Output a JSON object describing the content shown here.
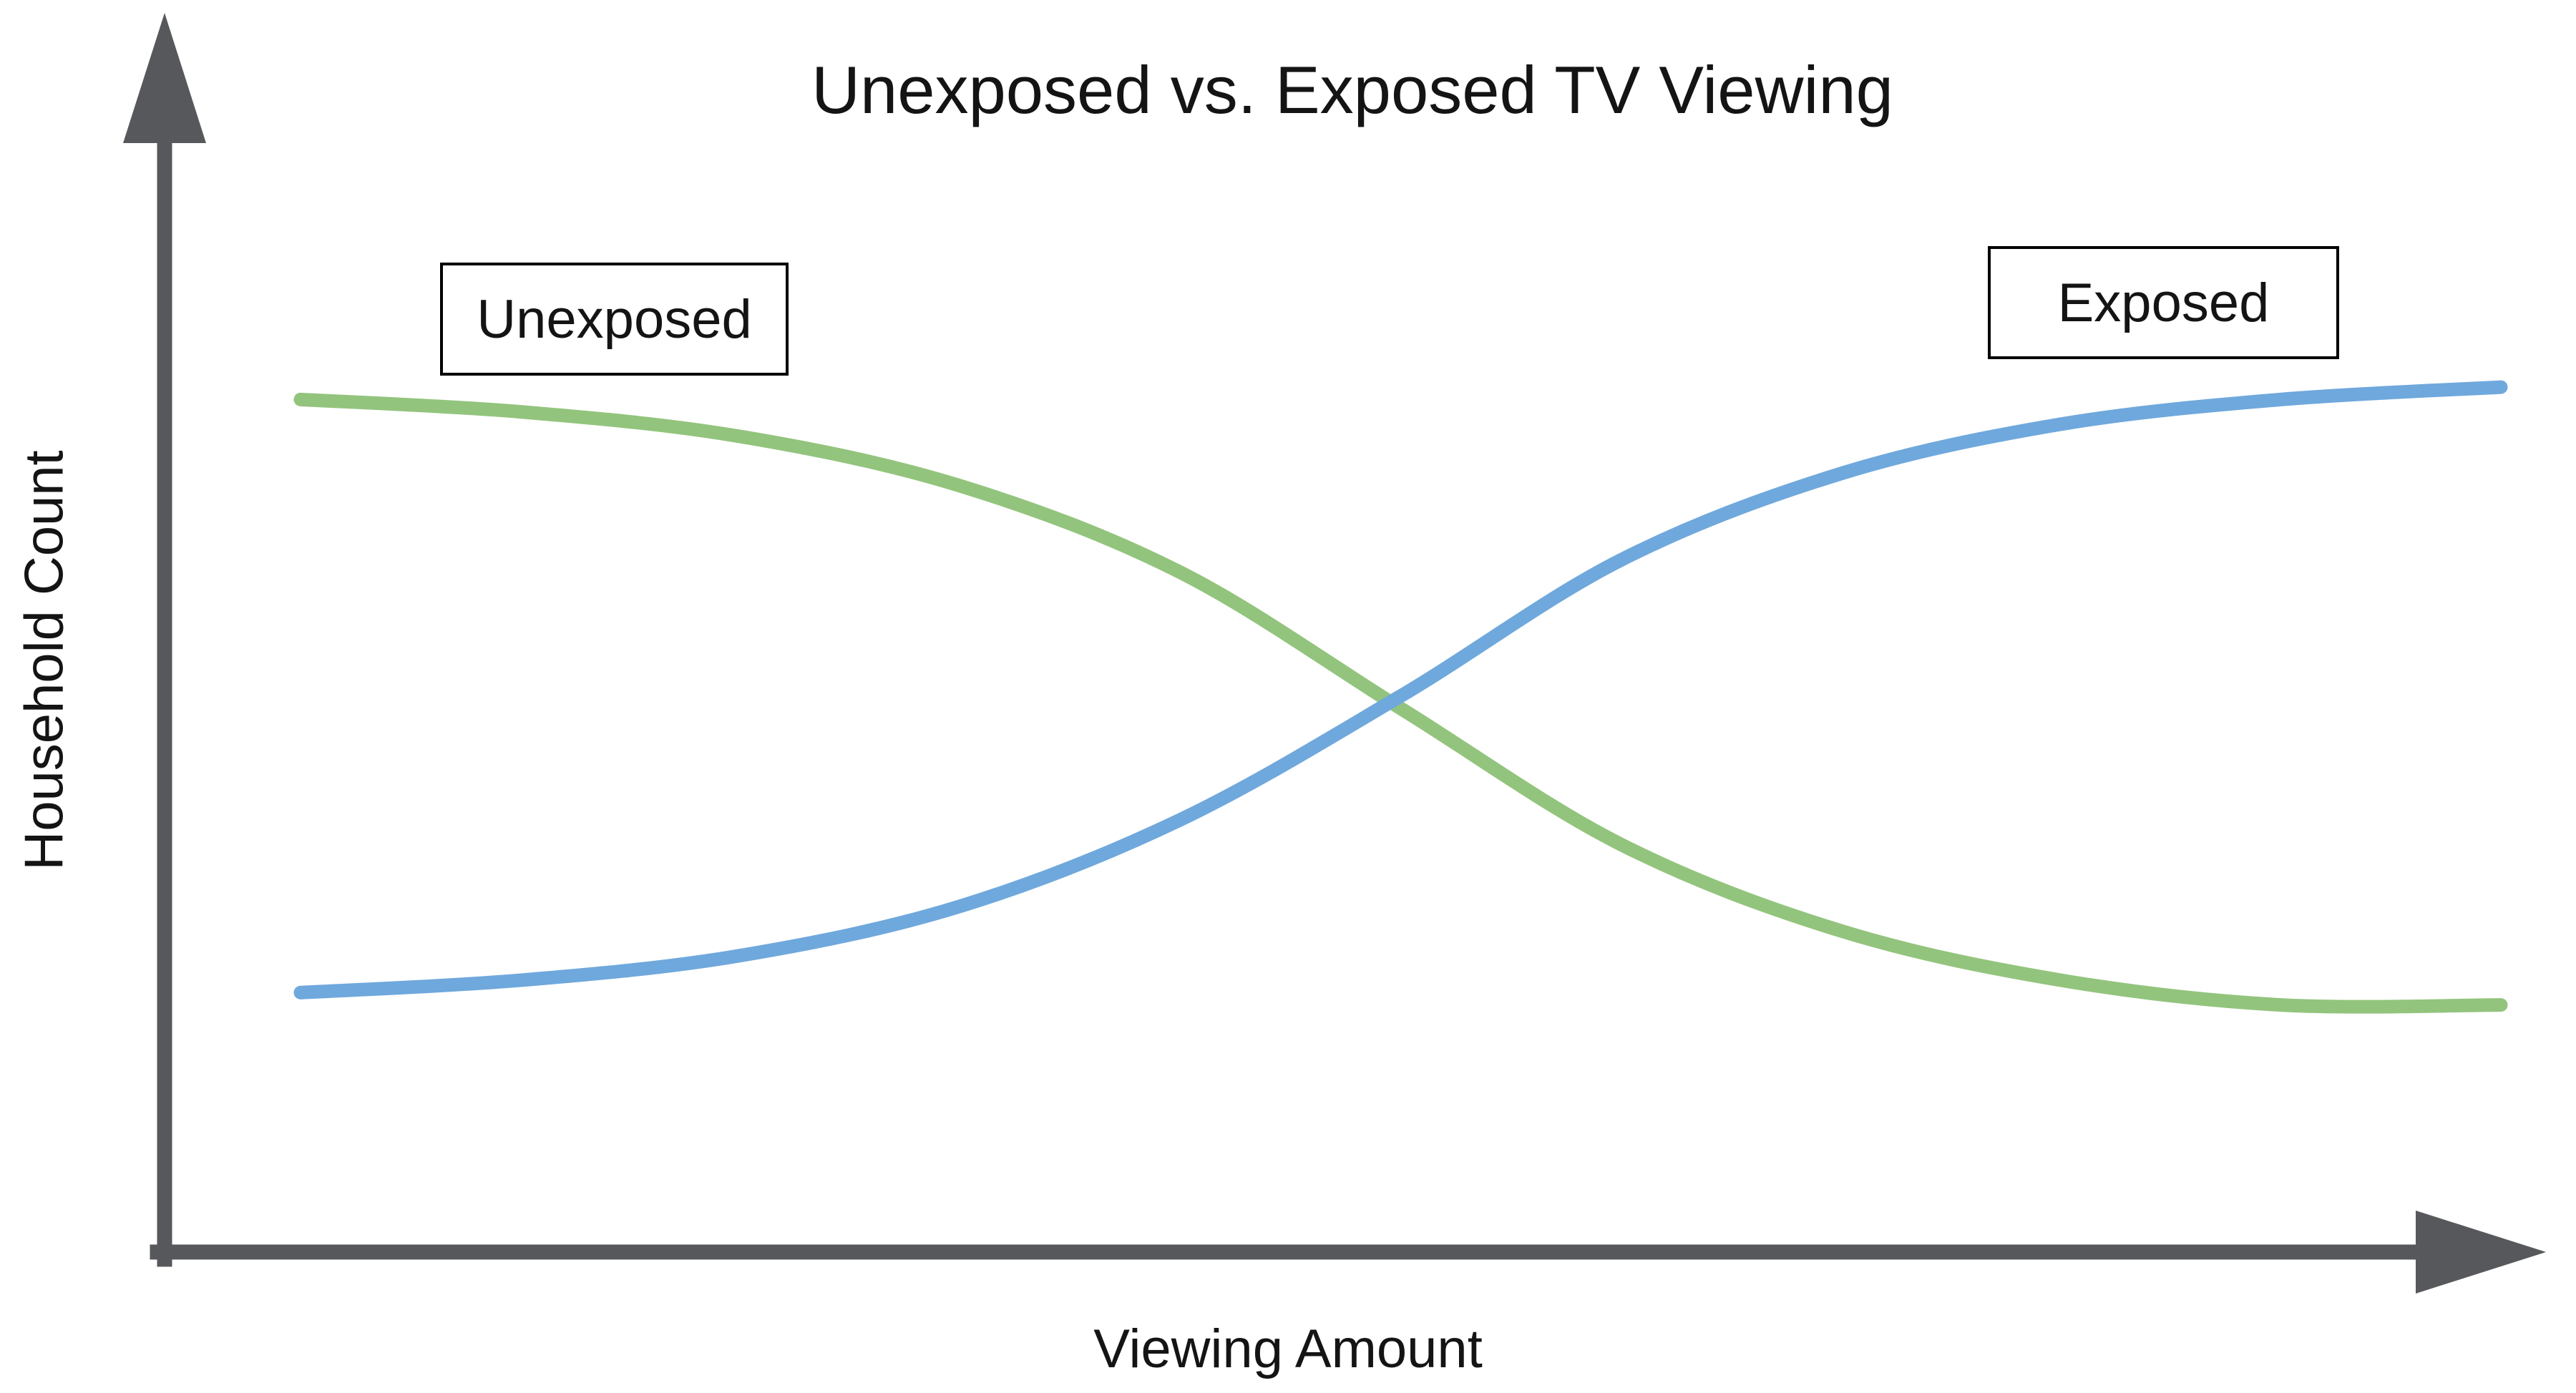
{
  "page": {
    "background_color": "#ffffff",
    "text_color": "#141414"
  },
  "chart_data": {
    "type": "line",
    "title": "Unexposed vs. Exposed TV Viewing",
    "xlabel": "Viewing Amount",
    "ylabel": "Household Count",
    "grid": false,
    "axis_color": "#57585b",
    "axes_have_arrows": true,
    "x_ticks": [],
    "y_ticks": [],
    "x": [
      0,
      1,
      2,
      3,
      4,
      5,
      6,
      7,
      8,
      9,
      10
    ],
    "ylim": [
      0,
      1
    ],
    "series": [
      {
        "name": "Unexposed",
        "color": "#93c47d",
        "shape": "decreasing-sigmoid",
        "values": [
          0.69,
          0.68,
          0.66,
          0.62,
          0.55,
          0.44,
          0.33,
          0.26,
          0.22,
          0.2,
          0.2
        ]
      },
      {
        "name": "Exposed",
        "color": "#6fa8dc",
        "shape": "increasing-sigmoid",
        "values": [
          0.21,
          0.22,
          0.24,
          0.28,
          0.35,
          0.45,
          0.56,
          0.63,
          0.67,
          0.69,
          0.7
        ]
      }
    ],
    "annotations": [
      {
        "text": "Unexposed",
        "style": "boxed-label",
        "position": "upper-left"
      },
      {
        "text": "Exposed",
        "style": "boxed-label",
        "position": "upper-right"
      }
    ],
    "legend_position": "boxed-annotations-on-plot"
  }
}
